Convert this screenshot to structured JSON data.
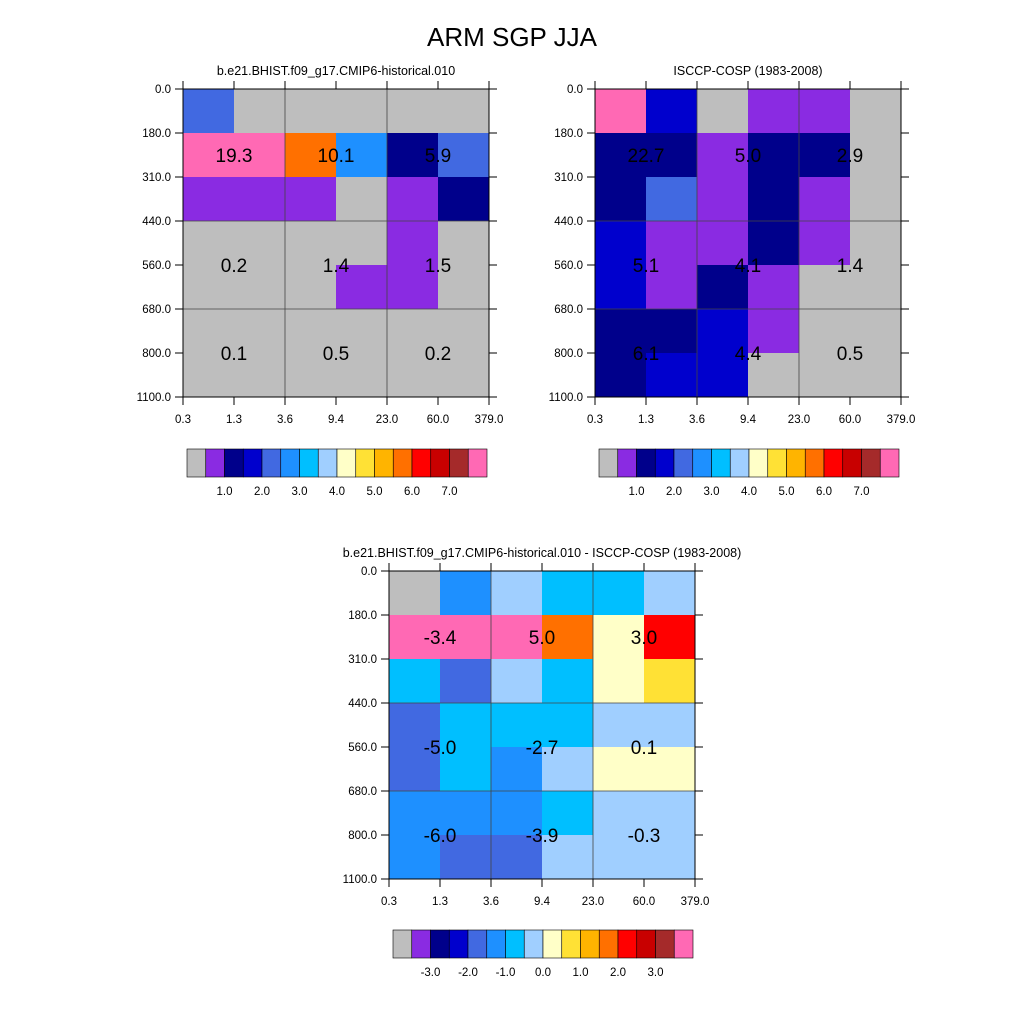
{
  "figure": {
    "title": "ARM SGP JJA"
  },
  "palette": {
    "gray": "#bebebe",
    "purple": "#8a2be2",
    "dkblue": "#00008b",
    "blue": "#0000cd",
    "royal": "#4169e1",
    "dodger": "#1e90ff",
    "sky": "#00bfff",
    "lightblue": "#a0cfff",
    "lightyellow": "#ffffc8",
    "yellow": "#ffe135",
    "orangeyellow": "#ffb400",
    "orange": "#ff7000",
    "red": "#ff0000",
    "dkred": "#c80000",
    "brown": "#a52a2a",
    "pink": "#ff69b4"
  },
  "chart_data": [
    {
      "type": "heatmap",
      "title": "b.e21.BHIST.f09_g17.CMIP6-historical.010",
      "x_ticks": [
        "0.3",
        "1.3",
        "3.6",
        "9.4",
        "23.0",
        "60.0",
        "379.0"
      ],
      "y_ticks": [
        "0.0",
        "180.0",
        "310.0",
        "440.0",
        "560.0",
        "680.0",
        "800.0",
        "1100.0"
      ],
      "cells": [
        [
          "royal",
          "gray",
          "gray",
          "gray",
          "gray",
          "gray"
        ],
        [
          "pink",
          "pink",
          "orange",
          "dodger",
          "dkblue",
          "royal"
        ],
        [
          "purple",
          "purple",
          "purple",
          "gray",
          "purple",
          "dkblue"
        ],
        [
          "gray",
          "gray",
          "gray",
          "gray",
          "purple",
          "gray"
        ],
        [
          "gray",
          "gray",
          "gray",
          "purple",
          "purple",
          "gray"
        ],
        [
          "gray",
          "gray",
          "gray",
          "gray",
          "gray",
          "gray"
        ],
        [
          "gray",
          "gray",
          "gray",
          "gray",
          "gray",
          "gray"
        ]
      ],
      "grid_x": [
        2,
        4
      ],
      "grid_y": [
        3,
        5
      ],
      "labels": [
        {
          "text": "19.3",
          "col": 1,
          "row": 1.5
        },
        {
          "text": "10.1",
          "col": 3,
          "row": 1.5
        },
        {
          "text": "5.9",
          "col": 5,
          "row": 1.5
        },
        {
          "text": "0.2",
          "col": 1,
          "row": 4
        },
        {
          "text": "1.4",
          "col": 3,
          "row": 4
        },
        {
          "text": "1.5",
          "col": 5,
          "row": 4
        },
        {
          "text": "0.1",
          "col": 1,
          "row": 6
        },
        {
          "text": "0.5",
          "col": 3,
          "row": 6
        },
        {
          "text": "0.2",
          "col": 5,
          "row": 6
        }
      ],
      "colorbar": {
        "colors": [
          "gray",
          "purple",
          "dkblue",
          "blue",
          "royal",
          "dodger",
          "sky",
          "lightblue",
          "lightyellow",
          "yellow",
          "orangeyellow",
          "orange",
          "red",
          "dkred",
          "brown",
          "pink"
        ],
        "labels": [
          "1.0",
          "2.0",
          "3.0",
          "4.0",
          "5.0",
          "6.0",
          "7.0"
        ],
        "label_boundaries": [
          2,
          4,
          6,
          8,
          10,
          12,
          14
        ]
      }
    },
    {
      "type": "heatmap",
      "title": "ISCCP-COSP (1983-2008)",
      "x_ticks": [
        "0.3",
        "1.3",
        "3.6",
        "9.4",
        "23.0",
        "60.0",
        "379.0"
      ],
      "y_ticks": [
        "0.0",
        "180.0",
        "310.0",
        "440.0",
        "560.0",
        "680.0",
        "800.0",
        "1100.0"
      ],
      "cells": [
        [
          "pink",
          "blue",
          "gray",
          "purple",
          "purple",
          "gray"
        ],
        [
          "dkblue",
          "dkblue",
          "purple",
          "dkblue",
          "dkblue",
          "gray"
        ],
        [
          "dkblue",
          "royal",
          "purple",
          "dkblue",
          "purple",
          "gray"
        ],
        [
          "blue",
          "purple",
          "purple",
          "dkblue",
          "purple",
          "gray"
        ],
        [
          "blue",
          "purple",
          "dkblue",
          "purple",
          "gray",
          "gray"
        ],
        [
          "dkblue",
          "dkblue",
          "blue",
          "purple",
          "gray",
          "gray"
        ],
        [
          "dkblue",
          "blue",
          "blue",
          "gray",
          "gray",
          "gray"
        ]
      ],
      "grid_x": [
        2,
        4
      ],
      "grid_y": [
        3,
        5
      ],
      "labels": [
        {
          "text": "22.7",
          "col": 1,
          "row": 1.5
        },
        {
          "text": "5.0",
          "col": 3,
          "row": 1.5
        },
        {
          "text": "2.9",
          "col": 5,
          "row": 1.5
        },
        {
          "text": "5.1",
          "col": 1,
          "row": 4
        },
        {
          "text": "4.1",
          "col": 3,
          "row": 4
        },
        {
          "text": "1.4",
          "col": 5,
          "row": 4
        },
        {
          "text": "6.1",
          "col": 1,
          "row": 6
        },
        {
          "text": "4.4",
          "col": 3,
          "row": 6
        },
        {
          "text": "0.5",
          "col": 5,
          "row": 6
        }
      ],
      "colorbar": {
        "colors": [
          "gray",
          "purple",
          "dkblue",
          "blue",
          "royal",
          "dodger",
          "sky",
          "lightblue",
          "lightyellow",
          "yellow",
          "orangeyellow",
          "orange",
          "red",
          "dkred",
          "brown",
          "pink"
        ],
        "labels": [
          "1.0",
          "2.0",
          "3.0",
          "4.0",
          "5.0",
          "6.0",
          "7.0"
        ],
        "label_boundaries": [
          2,
          4,
          6,
          8,
          10,
          12,
          14
        ]
      }
    },
    {
      "type": "heatmap",
      "title": "b.e21.BHIST.f09_g17.CMIP6-historical.010 - ISCCP-COSP (1983-2008)",
      "x_ticks": [
        "0.3",
        "1.3",
        "3.6",
        "9.4",
        "23.0",
        "60.0",
        "379.0"
      ],
      "y_ticks": [
        "0.0",
        "180.0",
        "310.0",
        "440.0",
        "560.0",
        "680.0",
        "800.0",
        "1100.0"
      ],
      "cells": [
        [
          "gray",
          "dodger",
          "lightblue",
          "sky",
          "sky",
          "lightblue"
        ],
        [
          "pink",
          "pink",
          "pink",
          "orange",
          "lightyellow",
          "red"
        ],
        [
          "sky",
          "royal",
          "lightblue",
          "sky",
          "lightyellow",
          "yellow"
        ],
        [
          "royal",
          "sky",
          "sky",
          "sky",
          "lightblue",
          "lightblue"
        ],
        [
          "royal",
          "sky",
          "dodger",
          "lightblue",
          "lightyellow",
          "lightyellow"
        ],
        [
          "dodger",
          "dodger",
          "dodger",
          "sky",
          "lightblue",
          "lightblue"
        ],
        [
          "dodger",
          "royal",
          "royal",
          "lightblue",
          "lightblue",
          "lightblue"
        ]
      ],
      "grid_x": [
        2,
        4
      ],
      "grid_y": [
        3,
        5
      ],
      "labels": [
        {
          "text": "-3.4",
          "col": 1,
          "row": 1.5
        },
        {
          "text": "5.0",
          "col": 3,
          "row": 1.5
        },
        {
          "text": "3.0",
          "col": 5,
          "row": 1.5
        },
        {
          "text": "-5.0",
          "col": 1,
          "row": 4
        },
        {
          "text": "-2.7",
          "col": 3,
          "row": 4
        },
        {
          "text": "0.1",
          "col": 5,
          "row": 4
        },
        {
          "text": "-6.0",
          "col": 1,
          "row": 6
        },
        {
          "text": "-3.9",
          "col": 3,
          "row": 6
        },
        {
          "text": "-0.3",
          "col": 5,
          "row": 6
        }
      ],
      "colorbar": {
        "colors": [
          "gray",
          "purple",
          "dkblue",
          "blue",
          "royal",
          "dodger",
          "sky",
          "lightblue",
          "lightyellow",
          "yellow",
          "orangeyellow",
          "orange",
          "red",
          "dkred",
          "brown",
          "pink"
        ],
        "labels": [
          "-3.0",
          "-2.0",
          "-1.0",
          "0.0",
          "1.0",
          "2.0",
          "3.0"
        ],
        "label_boundaries": [
          2,
          4,
          6,
          8,
          10,
          12,
          14
        ]
      }
    }
  ]
}
